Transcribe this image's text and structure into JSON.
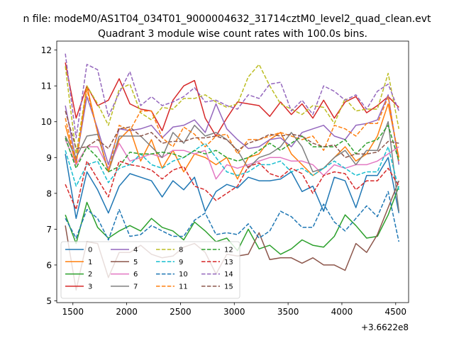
{
  "suptitle": "n file: modeM0/AS1T04_034T01_9000004632_31714cztM0_level2_quad_clean.evt",
  "chart_data": {
    "type": "line",
    "title": "Quadrant 3 module wise count rates with 100.0s bins.",
    "xlabel": "",
    "ylabel": "",
    "x_offset_label": "+3.6622e8",
    "xlim": [
      1350,
      4620
    ],
    "ylim": [
      4.95,
      12.25
    ],
    "xticks": [
      1500,
      2000,
      2500,
      3000,
      3500,
      4000,
      4500
    ],
    "yticks": [
      5,
      6,
      7,
      8,
      9,
      10,
      11,
      12
    ],
    "grid": false,
    "legend": {
      "placement": "lower-left",
      "columns": 4
    },
    "x": [
      1430,
      1530,
      1630,
      1730,
      1830,
      1930,
      2030,
      2130,
      2230,
      2330,
      2430,
      2530,
      2630,
      2730,
      2830,
      2930,
      3030,
      3130,
      3230,
      3330,
      3430,
      3530,
      3630,
      3730,
      3830,
      3930,
      4030,
      4130,
      4230,
      4330,
      4430,
      4530
    ],
    "series": [
      {
        "name": "0",
        "color": "#1f77b4",
        "dash": "solid",
        "values": [
          9.1,
          7.3,
          8.6,
          8.1,
          7.45,
          8.2,
          8.55,
          8.45,
          8.35,
          7.9,
          8.35,
          8.1,
          8.45,
          7.5,
          8.05,
          8.25,
          8.15,
          8.45,
          8.35,
          8.35,
          8.4,
          8.6,
          8.05,
          8.2,
          7.5,
          8.45,
          8.35,
          7.6,
          8.5,
          8.5,
          9.0,
          7.45
        ]
      },
      {
        "name": "1",
        "color": "#ff7f0e",
        "dash": "solid",
        "values": [
          9.9,
          8.8,
          11.0,
          9.7,
          8.6,
          9.5,
          9.8,
          8.9,
          9.5,
          8.7,
          9.2,
          8.6,
          9.1,
          9.0,
          8.8,
          9.0,
          8.4,
          9.0,
          9.1,
          9.5,
          9.7,
          9.1,
          8.8,
          8.5,
          8.7,
          9.0,
          9.3,
          8.9,
          9.1,
          9.6,
          10.5,
          9.0
        ]
      },
      {
        "name": "2",
        "color": "#2ca02c",
        "dash": "solid",
        "values": [
          7.4,
          6.6,
          7.75,
          7.05,
          6.75,
          6.95,
          7.1,
          6.95,
          7.3,
          7.05,
          6.95,
          6.7,
          7.2,
          6.95,
          6.65,
          6.75,
          6.4,
          7.0,
          6.45,
          6.55,
          6.3,
          6.45,
          6.7,
          6.55,
          6.5,
          6.8,
          7.4,
          7.1,
          6.75,
          6.8,
          7.4,
          8.2
        ]
      },
      {
        "name": "3",
        "color": "#d62728",
        "dash": "solid",
        "values": [
          11.65,
          10.1,
          11.0,
          10.45,
          10.6,
          11.2,
          10.5,
          10.35,
          10.3,
          9.75,
          10.6,
          11.0,
          11.15,
          10.1,
          9.6,
          10.1,
          10.55,
          10.5,
          10.45,
          10.15,
          10.55,
          10.2,
          10.5,
          10.1,
          10.6,
          10.1,
          10.55,
          10.7,
          10.25,
          10.45,
          10.7,
          10.4
        ]
      },
      {
        "name": "4",
        "color": "#9467bd",
        "dash": "solid",
        "values": [
          10.45,
          8.9,
          10.7,
          9.8,
          8.8,
          9.8,
          9.75,
          9.8,
          9.9,
          9.55,
          9.85,
          9.9,
          10.05,
          9.7,
          10.5,
          9.8,
          9.5,
          9.25,
          9.3,
          9.5,
          9.55,
          9.3,
          9.7,
          9.8,
          9.9,
          9.6,
          9.5,
          9.9,
          9.95,
          10.05,
          10.75,
          8.8
        ]
      },
      {
        "name": "5",
        "color": "#8c564b",
        "dash": "solid",
        "values": [
          7.1,
          5.3,
          6.65,
          6.6,
          5.65,
          6.35,
          6.35,
          6.55,
          6.3,
          6.2,
          6.25,
          6.5,
          6.6,
          6.35,
          5.75,
          6.3,
          6.25,
          6.3,
          6.9,
          6.15,
          6.2,
          6.2,
          6.05,
          6.2,
          6.0,
          6.0,
          5.85,
          6.6,
          6.35,
          6.85,
          7.6,
          8.35
        ]
      },
      {
        "name": "6",
        "color": "#e377c2",
        "dash": "solid",
        "values": [
          9.5,
          8.8,
          9.3,
          9.3,
          8.7,
          9.4,
          8.9,
          9.0,
          9.1,
          9.0,
          9.2,
          9.2,
          9.1,
          9.2,
          8.4,
          8.8,
          8.7,
          8.8,
          8.9,
          9.0,
          9.0,
          8.9,
          8.9,
          8.8,
          8.5,
          8.8,
          8.7,
          8.8,
          8.8,
          8.9,
          9.1,
          9.3
        ]
      },
      {
        "name": "7",
        "color": "#7f7f7f",
        "dash": "solid",
        "values": [
          9.6,
          9.0,
          9.6,
          9.65,
          8.6,
          9.6,
          9.6,
          9.6,
          9.3,
          9.0,
          9.7,
          9.4,
          9.9,
          9.6,
          9.7,
          9.5,
          9.2,
          8.7,
          9.0,
          9.1,
          9.3,
          9.7,
          9.3,
          8.6,
          8.7,
          9.0,
          9.2,
          8.8,
          9.2,
          9.2,
          10.0,
          7.5
        ]
      },
      {
        "name": "8",
        "color": "#bcbd22",
        "dash": "dashed",
        "values": [
          11.55,
          9.1,
          11.0,
          10.5,
          9.9,
          10.9,
          11.05,
          10.25,
          10.05,
          10.4,
          10.35,
          10.65,
          10.65,
          10.75,
          10.55,
          10.4,
          10.5,
          11.25,
          11.6,
          11.0,
          10.5,
          10.35,
          10.2,
          10.45,
          10.4,
          9.95,
          10.65,
          10.3,
          10.35,
          10.35,
          11.35,
          9.8
        ]
      },
      {
        "name": "9",
        "color": "#17becf",
        "dash": "dashed",
        "values": [
          9.2,
          8.2,
          8.8,
          8.9,
          8.3,
          8.7,
          8.8,
          9.1,
          8.8,
          8.7,
          8.9,
          9.0,
          9.2,
          9.4,
          9.0,
          8.6,
          8.5,
          8.6,
          8.8,
          8.8,
          8.9,
          8.6,
          8.7,
          8.5,
          8.7,
          8.9,
          8.7,
          8.5,
          8.6,
          8.6,
          9.3,
          8.1
        ]
      },
      {
        "name": "10",
        "color": "#1f77b4",
        "dash": "dashed",
        "values": [
          7.3,
          6.75,
          7.55,
          7.3,
          6.7,
          7.55,
          6.8,
          6.85,
          7.1,
          6.95,
          6.8,
          6.8,
          7.25,
          7.45,
          6.85,
          6.9,
          6.85,
          7.15,
          6.75,
          6.95,
          7.5,
          7.35,
          7.05,
          7.05,
          7.7,
          7.2,
          6.95,
          7.3,
          7.65,
          7.35,
          8.05,
          6.65
        ]
      },
      {
        "name": "11",
        "color": "#ff7f0e",
        "dash": "dashed",
        "values": [
          10.1,
          8.85,
          10.9,
          9.7,
          8.6,
          9.9,
          9.75,
          10.3,
          10.3,
          9.55,
          9.3,
          9.85,
          9.65,
          9.3,
          9.6,
          9.65,
          9.1,
          9.5,
          9.5,
          9.6,
          9.7,
          9.6,
          9.5,
          9.6,
          9.2,
          9.9,
          9.8,
          9.6,
          9.95,
          9.95,
          10.7,
          8.9
        ]
      },
      {
        "name": "12",
        "color": "#2ca02c",
        "dash": "dashed",
        "values": [
          9.55,
          8.7,
          9.3,
          9.0,
          8.6,
          8.75,
          9.15,
          9.1,
          9.1,
          9.15,
          9.1,
          9.0,
          9.2,
          9.1,
          9.2,
          9.0,
          8.9,
          9.0,
          9.2,
          9.4,
          9.2,
          9.4,
          9.6,
          9.3,
          9.3,
          9.3,
          9.5,
          9.1,
          9.4,
          9.5,
          9.9,
          8.9
        ]
      },
      {
        "name": "13",
        "color": "#d62728",
        "dash": "dashed",
        "values": [
          8.25,
          7.55,
          8.9,
          8.4,
          7.9,
          8.9,
          8.8,
          8.75,
          8.65,
          8.4,
          8.65,
          8.75,
          8.2,
          8.1,
          7.8,
          8.0,
          8.2,
          8.75,
          8.85,
          8.55,
          8.45,
          8.7,
          8.55,
          8.0,
          8.5,
          8.6,
          8.55,
          8.1,
          8.35,
          8.35,
          8.7,
          8.2
        ]
      },
      {
        "name": "14",
        "color": "#9467bd",
        "dash": "dashed",
        "values": [
          11.9,
          9.55,
          11.6,
          11.45,
          10.15,
          10.8,
          11.4,
          10.45,
          10.7,
          10.45,
          10.55,
          10.7,
          10.95,
          10.55,
          10.6,
          10.45,
          10.35,
          10.75,
          10.65,
          11.05,
          11.1,
          10.3,
          10.6,
          10.2,
          11.0,
          10.85,
          10.6,
          10.75,
          10.35,
          10.85,
          11.05,
          10.3
        ]
      },
      {
        "name": "15",
        "color": "#8c564b",
        "dash": "dashed",
        "values": [
          10.3,
          9.25,
          9.3,
          9.5,
          9.25,
          9.8,
          9.85,
          9.6,
          9.7,
          9.4,
          9.45,
          9.45,
          9.55,
          9.55,
          9.6,
          9.5,
          9.2,
          9.4,
          9.5,
          9.65,
          9.6,
          9.65,
          9.6,
          9.4,
          9.3,
          9.35,
          9.0,
          9.1,
          9.1,
          9.15,
          9.45,
          9.4
        ]
      }
    ]
  }
}
